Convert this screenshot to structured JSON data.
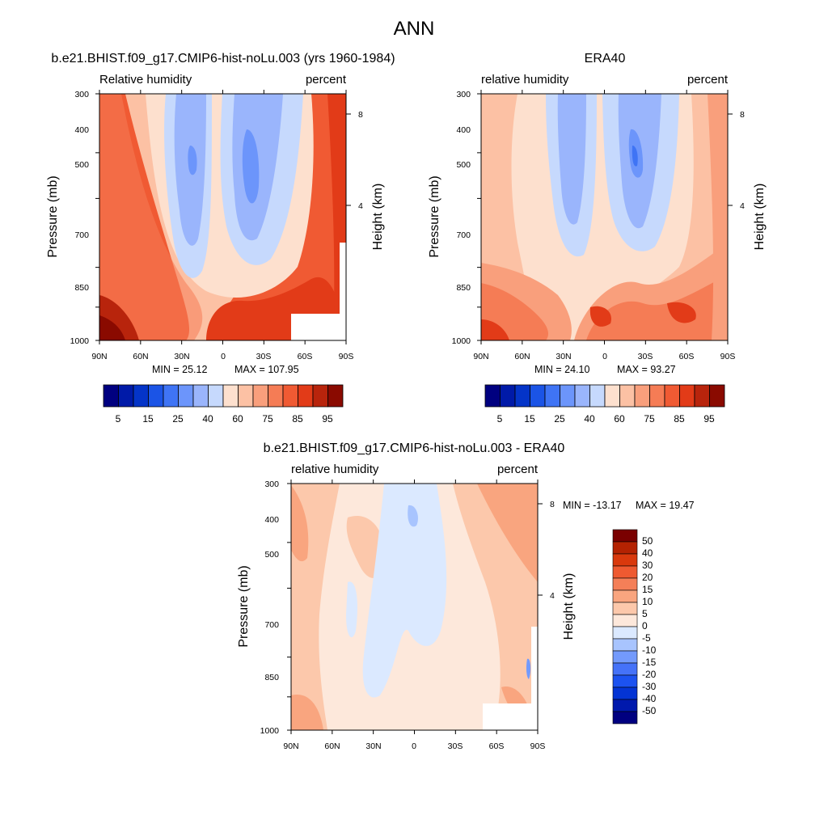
{
  "title": "ANN",
  "colors": {
    "rh_levels": [
      "#000080",
      "#001aa8",
      "#0434c8",
      "#1b54e6",
      "#3f74f5",
      "#6c95fb",
      "#9ab5fc",
      "#c6d9fd",
      "#fde0ce",
      "#fcc1a4",
      "#f99f7c",
      "#f57c55",
      "#f05a33",
      "#e23b18",
      "#b8240c",
      "#8a0a00"
    ],
    "diff_levels": [
      "#000080",
      "#0019ad",
      "#0434d4",
      "#1c52f0",
      "#4572f8",
      "#739afc",
      "#a8c4fe",
      "#dbe9ff",
      "#fde8db",
      "#fcc8ab",
      "#f9a57f",
      "#f47f58",
      "#ee5a31",
      "#d9390d",
      "#b42202",
      "#7a0000"
    ]
  },
  "chart_data": [
    {
      "type": "heatmap",
      "name": "model-panel",
      "title": "b.e21.BHIST.f09_g17.CMIP6-hist-noLu.003 (yrs 1960-1984)",
      "left_label": "Relative humidity",
      "right_label": "percent",
      "ylabel": "Pressure (mb)",
      "ylabel_right": "Height (km)",
      "xlabel": "",
      "x_ticks": [
        "90N",
        "60N",
        "30N",
        "0",
        "30S",
        "60S",
        "90S"
      ],
      "y_ticks": [
        "300",
        "400",
        "500",
        "700",
        "850",
        "1000"
      ],
      "height_ticks": [
        "8",
        "4"
      ],
      "ylim": [
        1000,
        300
      ],
      "min_label": "MIN = 25.12",
      "max_label": "MAX = 107.95",
      "colorbar_ticks": [
        "5",
        "15",
        "25",
        "40",
        "60",
        "75",
        "85",
        "95"
      ]
    },
    {
      "type": "heatmap",
      "name": "obs-panel",
      "title": "ERA40",
      "left_label": "relative humidity",
      "right_label": "percent",
      "ylabel": "Pressure (mb)",
      "ylabel_right": "Height (km)",
      "xlabel": "",
      "x_ticks": [
        "90N",
        "60N",
        "30N",
        "0",
        "30S",
        "60S",
        "90S"
      ],
      "y_ticks": [
        "300",
        "400",
        "500",
        "700",
        "850",
        "1000"
      ],
      "height_ticks": [
        "8",
        "4"
      ],
      "ylim": [
        1000,
        300
      ],
      "min_label": "MIN = 24.10",
      "max_label": "MAX = 93.27",
      "colorbar_ticks": [
        "5",
        "15",
        "25",
        "40",
        "60",
        "75",
        "85",
        "95"
      ]
    },
    {
      "type": "heatmap",
      "name": "diff-panel",
      "title": "b.e21.BHIST.f09_g17.CMIP6-hist-noLu.003 - ERA40",
      "left_label": "relative humidity",
      "right_label": "percent",
      "ylabel": "Pressure (mb)",
      "ylabel_right": "Height (km)",
      "xlabel": "",
      "x_ticks": [
        "90N",
        "60N",
        "30N",
        "0",
        "30S",
        "60S",
        "90S"
      ],
      "y_ticks": [
        "300",
        "400",
        "500",
        "700",
        "850",
        "1000"
      ],
      "height_ticks": [
        "8",
        "4"
      ],
      "ylim": [
        1000,
        300
      ],
      "min_label": "MIN = -13.17",
      "max_label": "MAX =  19.47",
      "colorbar_ticks": [
        "50",
        "40",
        "30",
        "20",
        "15",
        "10",
        "5",
        "0",
        "-5",
        "-10",
        "-15",
        "-20",
        "-30",
        "-40",
        "-50"
      ]
    }
  ]
}
